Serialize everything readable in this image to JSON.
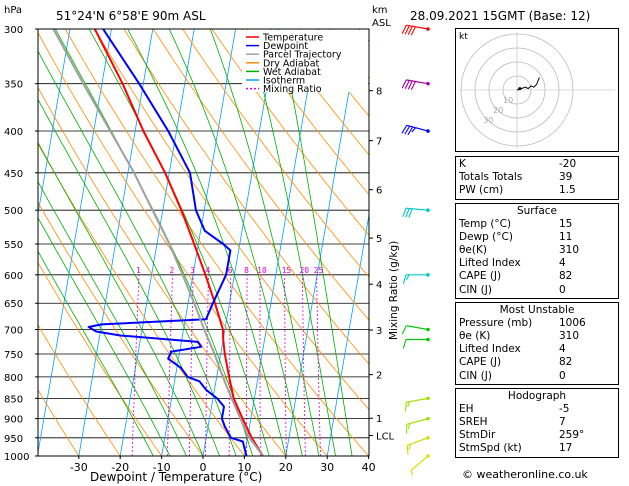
{
  "header": {
    "location": "51°24'N  6°58'E  90m  ASL",
    "datetime": "28.09.2021  15GMT  (Base: 12)",
    "hpa_label": "hPa",
    "km_label": "km",
    "asl_label": "ASL",
    "mixing_ratio_axis_label": "Mixing Ratio (g/kg)"
  },
  "legend": [
    {
      "label": "Temperature",
      "color": "#ff0000",
      "style": "solid"
    },
    {
      "label": "Dewpoint",
      "color": "#0000ff",
      "style": "solid"
    },
    {
      "label": "Parcel Trajectory",
      "color": "#a0a0a0",
      "style": "solid"
    },
    {
      "label": "Dry Adiabat",
      "color": "#ff8c00",
      "style": "solid"
    },
    {
      "label": "Wet Adiabat",
      "color": "#00b000",
      "style": "solid"
    },
    {
      "label": "Isotherm",
      "color": "#00a0ff",
      "style": "solid"
    },
    {
      "label": "Mixing Ratio",
      "color": "#e000e0",
      "style": "dotted"
    }
  ],
  "chart_data": {
    "type": "line",
    "title": "",
    "xlabel": "Dewpoint / Temperature (°C)",
    "ylabel": "hPa",
    "xlim": [
      -35,
      40
    ],
    "ylim": [
      1000,
      300
    ],
    "pressure_ticks": [
      300,
      350,
      400,
      450,
      500,
      550,
      600,
      650,
      700,
      750,
      800,
      850,
      900,
      950,
      1000
    ],
    "temperature_ticks": [
      -30,
      -20,
      -10,
      0,
      10,
      20,
      30,
      40
    ],
    "km_ticks": [
      {
        "label": "8",
        "p": 357
      },
      {
        "label": "7",
        "p": 411
      },
      {
        "label": "6",
        "p": 472
      },
      {
        "label": "5",
        "p": 541
      },
      {
        "label": "4",
        "p": 616
      },
      {
        "label": "3",
        "p": 701
      },
      {
        "label": "2",
        "p": 795
      },
      {
        "label": "1",
        "p": 899
      },
      {
        "label": "LCL",
        "p": 944
      }
    ],
    "mixing_ratio_labels": [
      "1",
      "2",
      "3",
      "4",
      "6",
      "8",
      "10",
      "15",
      "20",
      "25"
    ],
    "mixing_ratio_values": [
      1,
      2,
      3,
      4,
      6,
      8,
      10,
      15,
      20,
      25
    ],
    "series": [
      {
        "name": "Temperature",
        "color": "#ff0000",
        "p": [
          1000,
          950,
          900,
          850,
          800,
          750,
          720,
          700,
          650,
          600,
          550,
          500,
          450,
          400,
          350,
          300
        ],
        "t": [
          14.5,
          11,
          8,
          5,
          3,
          1,
          0,
          -0.5,
          -3.5,
          -7,
          -11,
          -15.5,
          -21,
          -28,
          -35,
          -44
        ]
      },
      {
        "name": "Dewpoint",
        "color": "#0000ff",
        "p": [
          1000,
          960,
          950,
          920,
          900,
          870,
          850,
          830,
          810,
          800,
          780,
          760,
          745,
          735,
          725,
          712,
          704,
          695,
          690,
          680,
          650,
          600,
          560,
          550,
          530,
          500,
          450,
          400,
          350,
          300
        ],
        "t": [
          10.5,
          9,
          6,
          4,
          3,
          3,
          1,
          -2,
          -4,
          -7,
          -9,
          -12.5,
          -12,
          -5,
          -6,
          -25,
          -31,
          -33,
          -30,
          -5,
          -4,
          -2,
          -2,
          -4,
          -9,
          -12,
          -15,
          -22,
          -31,
          -42
        ]
      },
      {
        "name": "Parcel Trajectory",
        "color": "#a0a0a0",
        "p": [
          1000,
          944,
          900,
          850,
          800,
          750,
          700,
          650,
          600,
          550,
          500,
          450,
          400,
          350,
          300
        ],
        "t": [
          14.5,
          10,
          7.5,
          4.5,
          1.5,
          -1.5,
          -5,
          -8.5,
          -12.5,
          -17,
          -22.5,
          -28.5,
          -36,
          -44.5,
          -54
        ]
      }
    ],
    "dry_adiabats_theta_c": [
      -30,
      -20,
      -10,
      0,
      10,
      20,
      30,
      40,
      50,
      60,
      70,
      80,
      90,
      100,
      110,
      120,
      130,
      140,
      150,
      160
    ],
    "wet_adiabats_c": [
      -12,
      -8,
      -4,
      0,
      4,
      8,
      12,
      16,
      20,
      24,
      28,
      32,
      36
    ],
    "isotherms_c": [
      -110,
      -100,
      -90,
      -80,
      -70,
      -60,
      -50,
      -40,
      -30,
      -20,
      -10,
      0,
      10,
      20,
      30,
      40
    ],
    "wind_barbs": [
      {
        "p": 300,
        "speed_kt": 40,
        "dir": 280,
        "color": "#ff0000"
      },
      {
        "p": 350,
        "speed_kt": 40,
        "dir": 280,
        "color": "#a000a0"
      },
      {
        "p": 400,
        "speed_kt": 35,
        "dir": 285,
        "color": "#0000ff"
      },
      {
        "p": 500,
        "speed_kt": 30,
        "dir": 275,
        "color": "#00c8c8"
      },
      {
        "p": 600,
        "speed_kt": 15,
        "dir": 270,
        "color": "#00c8c8"
      },
      {
        "p": 700,
        "speed_kt": 10,
        "dir": 280,
        "color": "#00c800"
      },
      {
        "p": 720,
        "speed_kt": 10,
        "dir": 270,
        "color": "#00c800"
      },
      {
        "p": 850,
        "speed_kt": 15,
        "dir": 260,
        "color": "#a0e000"
      },
      {
        "p": 900,
        "speed_kt": 15,
        "dir": 255,
        "color": "#a0e000"
      },
      {
        "p": 950,
        "speed_kt": 15,
        "dir": 250,
        "color": "#c8e000"
      },
      {
        "p": 1000,
        "speed_kt": 5,
        "dir": 230,
        "color": "#e0e000"
      }
    ]
  },
  "hodograph": {
    "label": "kt",
    "ring_labels": [
      "10",
      "20",
      "30"
    ],
    "points_kt": [
      [
        0,
        0
      ],
      [
        3,
        1
      ],
      [
        6,
        2
      ],
      [
        8,
        1
      ],
      [
        10,
        3
      ],
      [
        12,
        2
      ],
      [
        14,
        4
      ],
      [
        16,
        9
      ]
    ],
    "storm_motion_kt": [
      2,
      1
    ]
  },
  "indices": {
    "top": [
      {
        "label": "K",
        "value": "-20"
      },
      {
        "label": "Totals Totals",
        "value": "39"
      },
      {
        "label": "PW (cm)",
        "value": "1.5"
      }
    ],
    "surface_header": "Surface",
    "surface": [
      {
        "label": "Temp (°C)",
        "value": "15"
      },
      {
        "label": "Dewp (°C)",
        "value": "11"
      },
      {
        "label": "θe(K)",
        "value": "310"
      },
      {
        "label": "Lifted Index",
        "value": "4"
      },
      {
        "label": "CAPE (J)",
        "value": "82"
      },
      {
        "label": "CIN (J)",
        "value": "0"
      }
    ],
    "mu_header": "Most Unstable",
    "most_unstable": [
      {
        "label": "Pressure (mb)",
        "value": "1006"
      },
      {
        "label": "θe (K)",
        "value": "310"
      },
      {
        "label": "Lifted Index",
        "value": "4"
      },
      {
        "label": "CAPE (J)",
        "value": "82"
      },
      {
        "label": "CIN (J)",
        "value": "0"
      }
    ],
    "hodo_header": "Hodograph",
    "hodograph_params": [
      {
        "label": "EH",
        "value": "-5"
      },
      {
        "label": "SREH",
        "value": "7"
      },
      {
        "label": "StmDir",
        "value": "259°"
      },
      {
        "label": "StmSpd (kt)",
        "value": "17"
      }
    ]
  },
  "footer": "© weatheronline.co.uk"
}
